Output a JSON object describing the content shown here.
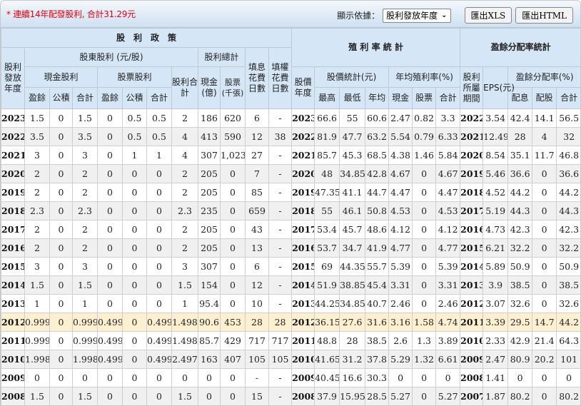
{
  "header": {
    "note": "* 連續14年配發股利, 合計31.29元",
    "display_by_label": "顯示依據：",
    "display_by_value": "股利發放年度",
    "export_xls": "匯出XLS",
    "export_html": "匯出HTML"
  },
  "table_headers": {
    "policy": "股　利　政　策",
    "yield_stats": "殖 利 率 統 計",
    "payout_stats": "盈餘分配率統計",
    "div_year": "股利發放年度",
    "shareholder_div": "股東股利 (元/股)",
    "div_total_group": "股利總計",
    "fill_div_days": "填息花費日數",
    "fill_right_days": "填權花費日數",
    "cash_div": "現金股利",
    "stock_div": "股票股利",
    "div_sum": "股利合計",
    "cash_total": "現金(億)",
    "stock_total": "股票(千張)",
    "earnings": "盈餘",
    "reserve": "公積",
    "subtotal": "合計",
    "price_year": "股價年度",
    "price_stats": "股價統計(元)",
    "avg_yield": "年均殖利率(%)",
    "high": "最高",
    "low": "最低",
    "avg": "年均",
    "cash": "現金",
    "stock": "股票",
    "period": "股利所屬期間",
    "eps": "EPS(元)",
    "payout_ratio": "盈餘分配率(%)",
    "payout_cash": "配息",
    "payout_stock": "配股"
  },
  "highlight_year": "2012",
  "rows": [
    [
      "2023",
      "1.5",
      "0",
      "1.5",
      "0",
      "0.5",
      "0.5",
      "2",
      "186",
      "620",
      "6",
      "-",
      "2023",
      "66.6",
      "55",
      "60.6",
      "2.47",
      "0.82",
      "3.3",
      "2022",
      "3.54",
      "42.4",
      "14.1",
      "56.5"
    ],
    [
      "2022",
      "3.5",
      "0",
      "3.5",
      "0",
      "0.5",
      "0.5",
      "4",
      "413",
      "590",
      "12",
      "38",
      "2022",
      "81.9",
      "47.7",
      "63.2",
      "5.54",
      "0.79",
      "6.33",
      "2021",
      "12.49",
      "28",
      "4",
      "32"
    ],
    [
      "2021",
      "3",
      "0",
      "3",
      "0",
      "1",
      "1",
      "4",
      "307",
      "1,023",
      "27",
      "-",
      "2021",
      "85.7",
      "45.3",
      "68.5",
      "4.38",
      "1.46",
      "5.84",
      "2020",
      "8.54",
      "35.1",
      "11.7",
      "46.8"
    ],
    [
      "2020",
      "2",
      "0",
      "2",
      "0",
      "0",
      "0",
      "2",
      "205",
      "0",
      "7",
      "-",
      "2020",
      "48",
      "34.85",
      "42.8",
      "4.67",
      "0",
      "4.67",
      "2019",
      "5.46",
      "36.6",
      "0",
      "36.6"
    ],
    [
      "2019",
      "2",
      "0",
      "2",
      "0",
      "0",
      "0",
      "2",
      "205",
      "0",
      "85",
      "-",
      "2019",
      "47.35",
      "41.1",
      "44.7",
      "4.47",
      "0",
      "4.47",
      "2018",
      "4.52",
      "44.2",
      "0",
      "44.2"
    ],
    [
      "2018",
      "2.3",
      "0",
      "2.3",
      "0",
      "0",
      "0",
      "2.3",
      "235",
      "0",
      "659",
      "-",
      "2018",
      "55",
      "46.1",
      "50.8",
      "4.53",
      "0",
      "4.53",
      "2017",
      "5.19",
      "44.3",
      "0",
      "44.3"
    ],
    [
      "2017",
      "2",
      "0",
      "2",
      "0",
      "0",
      "0",
      "2",
      "205",
      "0",
      "43",
      "-",
      "2017",
      "53.4",
      "45.7",
      "48.6",
      "4.12",
      "0",
      "4.12",
      "2016",
      "4.73",
      "42.3",
      "0",
      "42.3"
    ],
    [
      "2016",
      "2",
      "0",
      "2",
      "0",
      "0",
      "0",
      "2",
      "205",
      "0",
      "13",
      "-",
      "2016",
      "53.7",
      "34.7",
      "41.9",
      "4.77",
      "0",
      "4.77",
      "2015",
      "6.21",
      "32.2",
      "0",
      "32.2"
    ],
    [
      "2015",
      "3",
      "0",
      "3",
      "0",
      "0",
      "0",
      "3",
      "307",
      "0",
      "6",
      "-",
      "2015",
      "69",
      "44.35",
      "55.7",
      "5.39",
      "0",
      "5.39",
      "2014",
      "5.89",
      "50.9",
      "0",
      "50.9"
    ],
    [
      "2014",
      "1.5",
      "0",
      "1.5",
      "0",
      "0",
      "0",
      "1.5",
      "154",
      "0",
      "12",
      "-",
      "2014",
      "51.9",
      "38.85",
      "45.4",
      "3.31",
      "0",
      "3.31",
      "2013",
      "3.9",
      "38.5",
      "0",
      "38.5"
    ],
    [
      "2013",
      "1",
      "0",
      "1",
      "0",
      "0",
      "0",
      "1",
      "95.4",
      "0",
      "10",
      "-",
      "2013",
      "44.25",
      "34.85",
      "40.7",
      "2.46",
      "0",
      "2.46",
      "2012",
      "3.07",
      "32.6",
      "0",
      "32.6"
    ],
    [
      "2012",
      "0.999",
      "0",
      "0.999",
      "0.499",
      "0",
      "0.499",
      "1.498",
      "90.6",
      "453",
      "28",
      "28",
      "2012",
      "36.15",
      "27.6",
      "31.6",
      "3.16",
      "1.58",
      "4.74",
      "2011",
      "3.39",
      "29.5",
      "14.7",
      "44.2"
    ],
    [
      "2011",
      "0.999",
      "0",
      "0.999",
      "0.499",
      "0",
      "0.499",
      "1.498",
      "85.7",
      "429",
      "717",
      "717",
      "2011",
      "48.8",
      "28",
      "38.5",
      "2.6",
      "1.3",
      "3.89",
      "2010",
      "2.33",
      "42.9",
      "21.4",
      "64.3"
    ],
    [
      "2010",
      "1.998",
      "0",
      "1.998",
      "0.499",
      "0",
      "0.499",
      "2.497",
      "163",
      "407",
      "105",
      "105",
      "2010",
      "41.65",
      "31.2",
      "37.8",
      "5.29",
      "1.32",
      "6.61",
      "2009",
      "2.47",
      "80.9",
      "20.2",
      "101"
    ],
    [
      "2009",
      "0",
      "0",
      "0",
      "0",
      "0",
      "0",
      "0",
      "0",
      "0",
      "-",
      "-",
      "2009",
      "40.45",
      "16.6",
      "30.3",
      "0",
      "0",
      "0",
      "2008",
      "1.41",
      "0",
      "0",
      "0"
    ],
    [
      "2008",
      "1.5",
      "0",
      "1.5",
      "0",
      "0",
      "0",
      "1.5",
      "0",
      "0",
      "15",
      "-",
      "2008",
      "37.9",
      "15.95",
      "28.5",
      "5.27",
      "0",
      "5.27",
      "2007",
      "1.87",
      "80.2",
      "0",
      "80.2"
    ]
  ]
}
